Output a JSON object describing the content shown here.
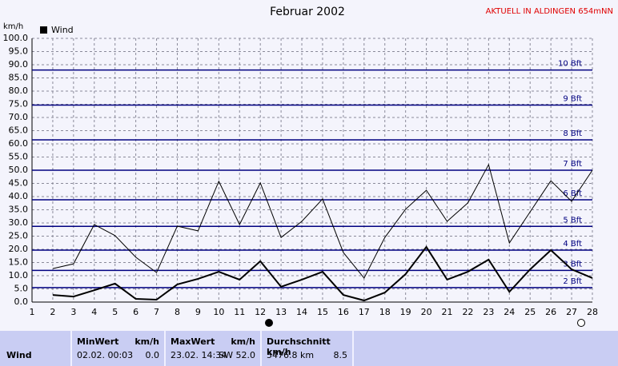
{
  "chart_data": {
    "type": "line",
    "title": "Februar 2002",
    "annotation": "AKTUELL IN ALDINGEN 654mNN",
    "y_label": "km/h",
    "x": [
      1,
      2,
      3,
      4,
      5,
      6,
      7,
      8,
      9,
      10,
      11,
      12,
      13,
      14,
      15,
      16,
      17,
      18,
      19,
      20,
      21,
      22,
      23,
      24,
      25,
      26,
      27,
      28
    ],
    "xlim": [
      1,
      28
    ],
    "xticks": [
      1,
      2,
      3,
      4,
      5,
      6,
      7,
      8,
      9,
      10,
      11,
      12,
      13,
      14,
      15,
      16,
      17,
      18,
      19,
      20,
      21,
      22,
      23,
      24,
      25,
      26,
      27,
      28
    ],
    "ylim": [
      0,
      100
    ],
    "yticks": [
      {
        "value": 0,
        "label": "0.0"
      },
      {
        "value": 5,
        "label": "5.0"
      },
      {
        "value": 10,
        "label": "10.0"
      },
      {
        "value": 15,
        "label": "15.0"
      },
      {
        "value": 20,
        "label": "20.0"
      },
      {
        "value": 25,
        "label": "25.0"
      },
      {
        "value": 30,
        "label": "30.0"
      },
      {
        "value": 35,
        "label": "35.0"
      },
      {
        "value": 40,
        "label": "40.0"
      },
      {
        "value": 45,
        "label": "45.0"
      },
      {
        "value": 50,
        "label": "50.0"
      },
      {
        "value": 55,
        "label": "55.0"
      },
      {
        "value": 60,
        "label": "60.0"
      },
      {
        "value": 65,
        "label": "65.0"
      },
      {
        "value": 70,
        "label": "70.0"
      },
      {
        "value": 75,
        "label": "75.0"
      },
      {
        "value": 80,
        "label": "80.0"
      },
      {
        "value": 85,
        "label": "85.0"
      },
      {
        "value": 90,
        "label": "90.0"
      },
      {
        "value": 95,
        "label": "95.0"
      },
      {
        "value": 100,
        "label": "100.0"
      }
    ],
    "grid": true,
    "series": [
      {
        "name": "Wind",
        "color": "#000000",
        "width": 2,
        "values": [
          null,
          2.7,
          2.1,
          4.5,
          7,
          1.2,
          0.9,
          6.7,
          8.8,
          11.5,
          8.5,
          15.5,
          5.8,
          8.5,
          11.5,
          2.7,
          0.6,
          3.6,
          10.6,
          20.9,
          8.5,
          11.5,
          16.1,
          3.9,
          12.4,
          19.7,
          12.4,
          9.1
        ]
      },
      {
        "color": "#000000",
        "width": 1,
        "values": [
          null,
          12.7,
          14.5,
          29.4,
          25.2,
          17,
          11.2,
          28.8,
          27,
          45.8,
          29.4,
          45.2,
          24.5,
          30.6,
          39.1,
          18.8,
          9.1,
          24.5,
          35.2,
          42.4,
          30.6,
          37.6,
          52.1,
          22.4,
          34.2,
          46,
          38.2,
          50
        ]
      }
    ],
    "reference_color": "#000080",
    "reference_lines": [
      {
        "value": 5.5,
        "label": "2 Bft"
      },
      {
        "value": 12,
        "label": "3 Bft"
      },
      {
        "value": 19.7,
        "label": "4 Bft"
      },
      {
        "value": 28.7,
        "label": "5 Bft"
      },
      {
        "value": 38.8,
        "label": "6 Bft"
      },
      {
        "value": 50,
        "label": "7 Bft"
      },
      {
        "value": 61.5,
        "label": "8 Bft"
      },
      {
        "value": 74.7,
        "label": "9 Bft"
      },
      {
        "value": 88,
        "label": "10 Bft"
      }
    ]
  },
  "table": {
    "row_label": "Wind",
    "columns": [
      {
        "header": "MinWert",
        "unit": "km/h",
        "when": "02.02.  00:03",
        "value": "0.0"
      },
      {
        "header": "MaxWert",
        "unit": "km/h",
        "when": "23.02.  14:34",
        "value": "SW 52.0"
      },
      {
        "header": "Durchschnitt km/h",
        "unit": "",
        "when": "5476.8 km",
        "value": "8.5"
      }
    ]
  }
}
